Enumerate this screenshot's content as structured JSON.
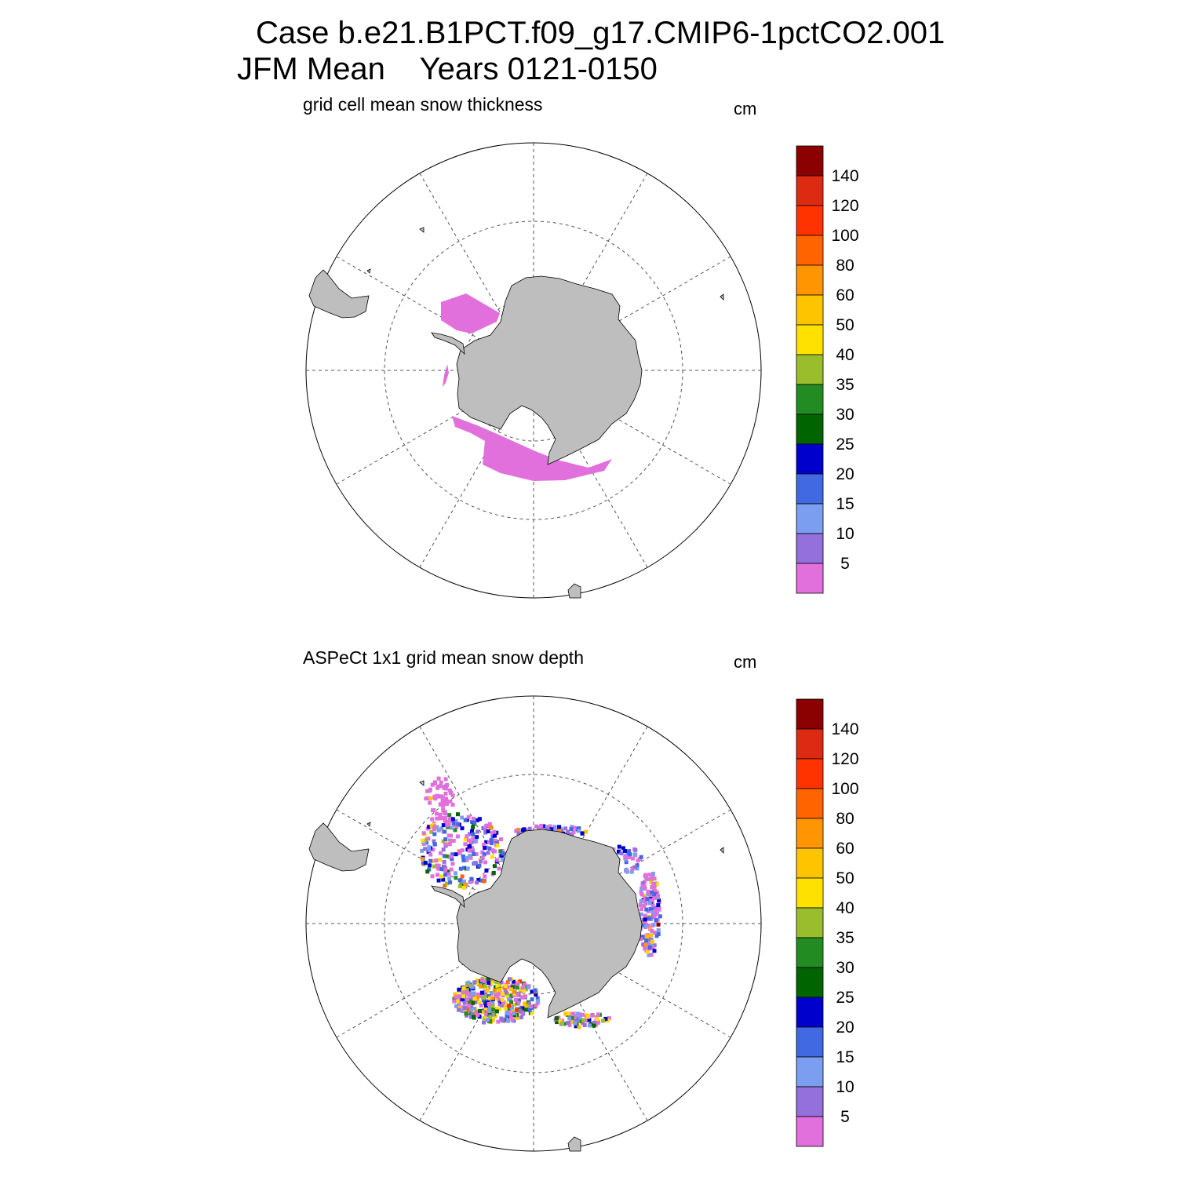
{
  "title": {
    "line1": "Case b.e21.B1PCT.f09_g17.CMIP6-1pctCO2.001",
    "line2": "JFM Mean    Years 0121-0150"
  },
  "panels": [
    {
      "id": "model",
      "title": "grid cell mean snow thickness",
      "unit": "cm"
    },
    {
      "id": "obs",
      "title": "ASPeCt 1x1 grid mean snow depth",
      "unit": "cm"
    }
  ],
  "colorbar": {
    "labels": [
      "5",
      "10",
      "15",
      "20",
      "25",
      "30",
      "35",
      "40",
      "50",
      "60",
      "80",
      "100",
      "120",
      "140"
    ],
    "colors": [
      "#e270dc",
      "#9370db",
      "#7b9ef0",
      "#4169e1",
      "#0000cd",
      "#006400",
      "#228b22",
      "#9abd2e",
      "#ffe100",
      "#ffc400",
      "#ff9500",
      "#ff6400",
      "#ff3300",
      "#dd2a12",
      "#8b0000"
    ]
  },
  "colors": {
    "land": "#bebebe",
    "grid": "#555555",
    "model_snow": "#e270dc"
  }
}
